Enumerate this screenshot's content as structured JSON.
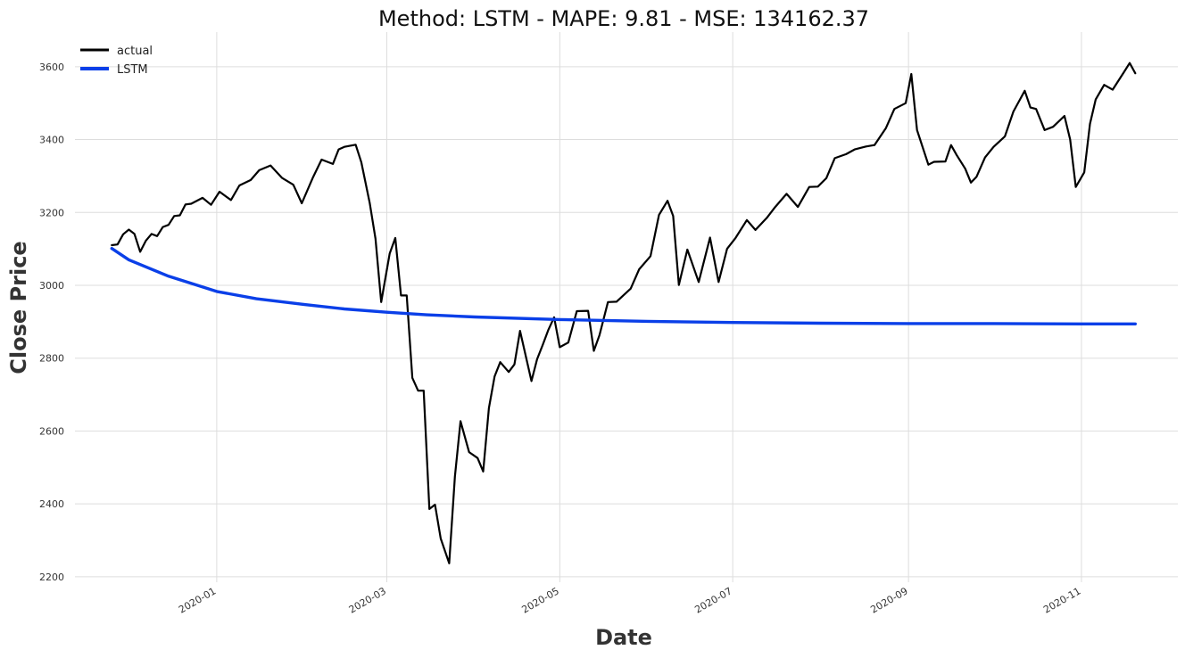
{
  "chart_data": {
    "type": "line",
    "title": "Method: LSTM - MAPE: 9.81 - MSE: 134162.37",
    "xlabel": "Date",
    "ylabel": "Close Price",
    "xlim": [
      "2019-11-12",
      "2020-12-05"
    ],
    "ylim": [
      2185,
      3695
    ],
    "grid": true,
    "legend_position": "top-left",
    "x_ticks": [
      "2020-01-01",
      "2020-03-01",
      "2020-05-01",
      "2020-07-01",
      "2020-09-01",
      "2020-11-01"
    ],
    "x_tick_labels": [
      "2020-01",
      "2020-03",
      "2020-05",
      "2020-07",
      "2020-09",
      "2020-11"
    ],
    "y_ticks": [
      2200,
      2400,
      2600,
      2800,
      3000,
      3200,
      3400,
      3600
    ],
    "y_tick_labels": [
      "2200",
      "2400",
      "2600",
      "2800",
      "3000",
      "3200",
      "3400",
      "3600"
    ],
    "series": [
      {
        "name": "actual",
        "color": "#000000",
        "x": [
          "2019-11-25",
          "2019-11-27",
          "2019-11-29",
          "2019-12-01",
          "2019-12-03",
          "2019-12-05",
          "2019-12-07",
          "2019-12-09",
          "2019-12-11",
          "2019-12-13",
          "2019-12-15",
          "2019-12-17",
          "2019-12-19",
          "2019-12-21",
          "2019-12-23",
          "2019-12-27",
          "2019-12-30",
          "2020-01-02",
          "2020-01-06",
          "2020-01-09",
          "2020-01-13",
          "2020-01-16",
          "2020-01-20",
          "2020-01-24",
          "2020-01-28",
          "2020-01-31",
          "2020-02-04",
          "2020-02-07",
          "2020-02-11",
          "2020-02-13",
          "2020-02-15",
          "2020-02-19",
          "2020-02-21",
          "2020-02-24",
          "2020-02-26",
          "2020-02-28",
          "2020-03-02",
          "2020-03-04",
          "2020-03-06",
          "2020-03-08",
          "2020-03-10",
          "2020-03-12",
          "2020-03-14",
          "2020-03-16",
          "2020-03-18",
          "2020-03-20",
          "2020-03-23",
          "2020-03-25",
          "2020-03-27",
          "2020-03-30",
          "2020-04-02",
          "2020-04-04",
          "2020-04-06",
          "2020-04-08",
          "2020-04-10",
          "2020-04-13",
          "2020-04-15",
          "2020-04-17",
          "2020-04-21",
          "2020-04-23",
          "2020-04-25",
          "2020-04-27",
          "2020-04-29",
          "2020-05-01",
          "2020-05-04",
          "2020-05-07",
          "2020-05-11",
          "2020-05-13",
          "2020-05-15",
          "2020-05-18",
          "2020-05-21",
          "2020-05-26",
          "2020-05-29",
          "2020-06-02",
          "2020-06-05",
          "2020-06-08",
          "2020-06-10",
          "2020-06-12",
          "2020-06-15",
          "2020-06-19",
          "2020-06-23",
          "2020-06-26",
          "2020-06-29",
          "2020-07-02",
          "2020-07-06",
          "2020-07-09",
          "2020-07-13",
          "2020-07-16",
          "2020-07-20",
          "2020-07-24",
          "2020-07-28",
          "2020-07-31",
          "2020-08-03",
          "2020-08-06",
          "2020-08-10",
          "2020-08-13",
          "2020-08-17",
          "2020-08-20",
          "2020-08-24",
          "2020-08-27",
          "2020-08-31",
          "2020-09-02",
          "2020-09-04",
          "2020-09-08",
          "2020-09-10",
          "2020-09-14",
          "2020-09-16",
          "2020-09-18",
          "2020-09-21",
          "2020-09-23",
          "2020-09-25",
          "2020-09-28",
          "2020-10-01",
          "2020-10-05",
          "2020-10-08",
          "2020-10-12",
          "2020-10-14",
          "2020-10-16",
          "2020-10-19",
          "2020-10-22",
          "2020-10-26",
          "2020-10-28",
          "2020-10-30",
          "2020-11-02",
          "2020-11-04",
          "2020-11-06",
          "2020-11-09",
          "2020-11-12",
          "2020-11-16",
          "2020-11-18",
          "2020-11-20"
        ],
        "values": [
          3110,
          3112,
          3140,
          3153,
          3141,
          3092,
          3122,
          3141,
          3135,
          3160,
          3166,
          3190,
          3192,
          3222,
          3224,
          3240,
          3221,
          3257,
          3234,
          3274,
          3289,
          3316,
          3329,
          3295,
          3276,
          3225,
          3297,
          3345,
          3333,
          3373,
          3380,
          3386,
          3338,
          3225,
          3128,
          2954,
          3087,
          3130,
          2972,
          2972,
          2746,
          2711,
          2711,
          2386,
          2398,
          2305,
          2237,
          2475,
          2627,
          2542,
          2526,
          2489,
          2663,
          2750,
          2789,
          2762,
          2783,
          2875,
          2737,
          2797,
          2837,
          2878,
          2912,
          2830,
          2843,
          2929,
          2930,
          2820,
          2863,
          2954,
          2955,
          2991,
          3044,
          3080,
          3193,
          3232,
          3190,
          3001,
          3098,
          3009,
          3131,
          3009,
          3100,
          3130,
          3179,
          3152,
          3185,
          3215,
          3251,
          3215,
          3270,
          3271,
          3294,
          3349,
          3360,
          3373,
          3381,
          3385,
          3431,
          3484,
          3500,
          3580,
          3426,
          3331,
          3339,
          3340,
          3385,
          3357,
          3320,
          3282,
          3298,
          3351,
          3380,
          3409,
          3477,
          3534,
          3488,
          3484,
          3426,
          3435,
          3465,
          3400,
          3270,
          3310,
          3443,
          3510,
          3550,
          3537,
          3585,
          3610,
          3582
        ]
      },
      {
        "name": "LSTM",
        "color": "#0a3fe8",
        "x": [
          "2019-11-25",
          "2019-12-01",
          "2019-12-15",
          "2020-01-01",
          "2020-01-15",
          "2020-02-01",
          "2020-02-15",
          "2020-03-01",
          "2020-03-15",
          "2020-04-01",
          "2020-05-01",
          "2020-06-01",
          "2020-07-01",
          "2020-08-01",
          "2020-09-01",
          "2020-10-01",
          "2020-11-01",
          "2020-11-20"
        ],
        "values": [
          3101,
          3070,
          3025,
          2983,
          2963,
          2947,
          2935,
          2926,
          2919,
          2913,
          2906,
          2901,
          2898,
          2896,
          2895,
          2895,
          2894,
          2894
        ]
      }
    ]
  }
}
